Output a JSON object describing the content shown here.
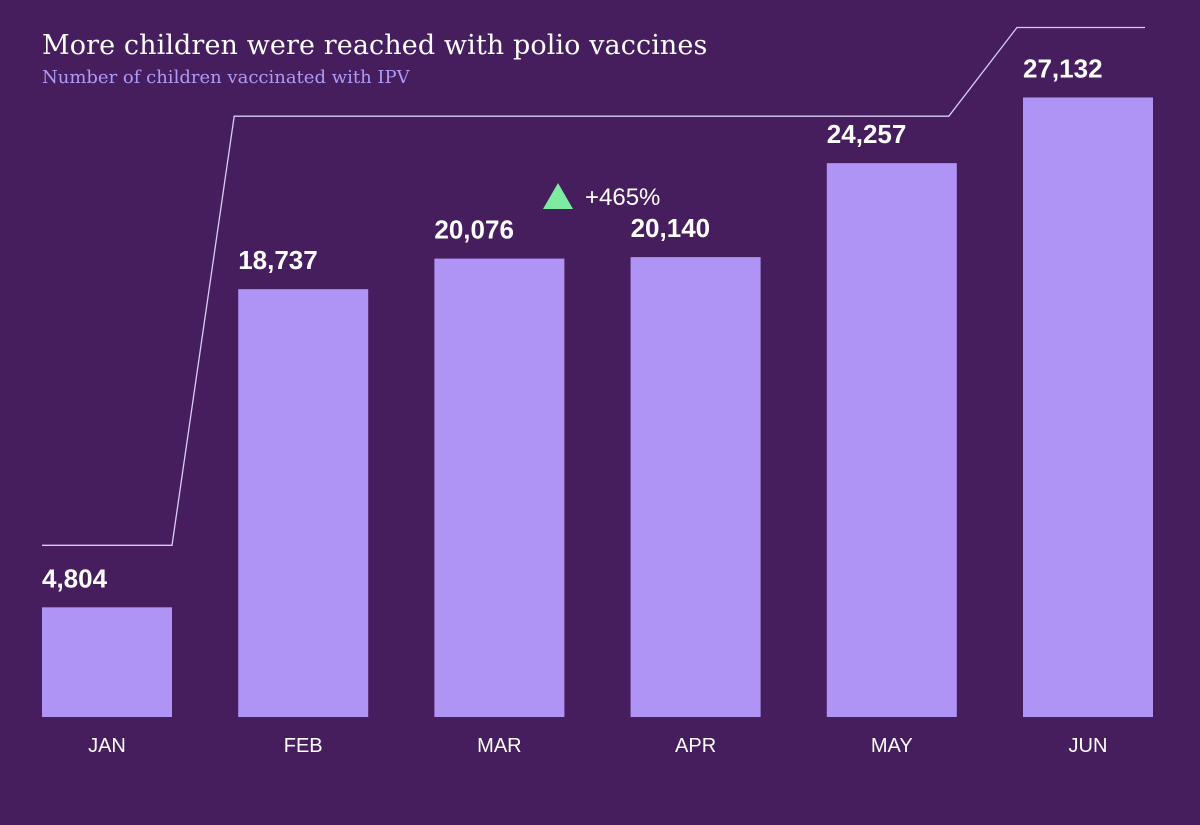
{
  "chart_data": {
    "type": "bar",
    "title": "More children were reached with polio vaccines",
    "subtitle": "Number of children vaccinated with IPV",
    "categories": [
      "JAN",
      "FEB",
      "MAR",
      "APR",
      "MAY",
      "JUN"
    ],
    "values": [
      4804,
      18737,
      20076,
      20140,
      24257,
      27132
    ],
    "value_labels": [
      "4,804",
      "18,737",
      "20,076",
      "20,140",
      "24,257",
      "27,132"
    ],
    "ylim": [
      0,
      30000
    ],
    "grid": false,
    "annotation": {
      "text": "+465%",
      "direction": "up",
      "icon": "triangle-up-icon",
      "from": "JAN",
      "to": "JUN"
    },
    "colors": {
      "background": "#461e5e",
      "bar": "#af94f5",
      "text": "#ffffff",
      "subtitle": "#b09af5",
      "connector": "#d9cdf3",
      "up_arrow": "#7deba0"
    }
  }
}
